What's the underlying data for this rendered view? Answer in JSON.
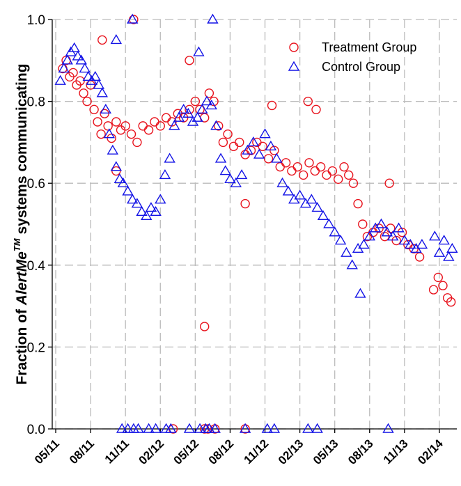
{
  "chart_data": {
    "type": "scatter",
    "ylabel_parts": [
      "Fraction of ",
      "AlertMe",
      "TM",
      " systems communicating"
    ],
    "xlim": [
      -0.3,
      34.5
    ],
    "ylim": [
      0,
      1.0
    ],
    "xticks": [
      {
        "value": 0,
        "label": "05/11"
      },
      {
        "value": 3,
        "label": "08/11"
      },
      {
        "value": 6,
        "label": "11/11"
      },
      {
        "value": 9,
        "label": "02/12"
      },
      {
        "value": 12,
        "label": "05/12"
      },
      {
        "value": 15,
        "label": "08/12"
      },
      {
        "value": 18,
        "label": "11/12"
      },
      {
        "value": 21,
        "label": "02/13"
      },
      {
        "value": 24,
        "label": "05/13"
      },
      {
        "value": 27,
        "label": "08/13"
      },
      {
        "value": 30,
        "label": "11/13"
      },
      {
        "value": 33,
        "label": "02/14"
      }
    ],
    "yticks": [
      {
        "value": 0,
        "label": "0.0"
      },
      0.2,
      0.4,
      0.6,
      0.8,
      {
        "value": 1,
        "label": "1.0"
      }
    ],
    "grid": true,
    "legend": "upper right",
    "series": [
      {
        "name": "Treatment Group",
        "color": "#e8141e",
        "marker": "circle",
        "x": [
          0.6,
          0.9,
          1.2,
          1.5,
          1.8,
          2.1,
          2.4,
          2.7,
          3.0,
          3.3,
          3.6,
          3.9,
          4.2,
          4.5,
          4.8,
          5.2,
          5.6,
          6.0,
          6.5,
          7.0,
          7.5,
          8.0,
          8.5,
          9.0,
          9.5,
          10.0,
          10.5,
          11.0,
          11.5,
          12.0,
          12.4,
          12.8,
          13.2,
          13.6,
          14.0,
          14.4,
          14.8,
          15.3,
          15.8,
          16.3,
          16.8,
          17.3,
          17.8,
          18.3,
          18.8,
          19.3,
          19.8,
          20.3,
          20.8,
          21.3,
          21.8,
          22.3,
          22.8,
          23.3,
          23.8,
          24.3,
          24.8,
          25.2,
          25.6,
          26.0,
          26.4,
          26.8,
          27.3,
          27.8,
          28.3,
          28.8,
          29.3,
          29.8,
          30.3,
          30.8,
          31.3,
          32.5,
          32.9,
          33.3,
          33.7,
          34.0,
          6.7,
          11.5,
          18.6,
          21.7,
          22.4,
          28.7,
          16.3,
          12.8,
          10.1,
          12.8,
          13.1,
          13.7,
          16.3,
          4.0,
          5.2
        ],
        "y": [
          0.88,
          0.9,
          0.86,
          0.87,
          0.84,
          0.85,
          0.82,
          0.8,
          0.84,
          0.78,
          0.75,
          0.72,
          0.77,
          0.74,
          0.71,
          0.75,
          0.73,
          0.74,
          0.72,
          0.7,
          0.74,
          0.73,
          0.75,
          0.74,
          0.76,
          0.75,
          0.77,
          0.76,
          0.78,
          0.8,
          0.78,
          0.76,
          0.82,
          0.8,
          0.74,
          0.7,
          0.72,
          0.69,
          0.7,
          0.67,
          0.68,
          0.7,
          0.69,
          0.66,
          0.68,
          0.64,
          0.65,
          0.63,
          0.64,
          0.62,
          0.65,
          0.63,
          0.64,
          0.62,
          0.63,
          0.61,
          0.64,
          0.62,
          0.6,
          0.55,
          0.5,
          0.47,
          0.48,
          0.49,
          0.47,
          0.49,
          0.46,
          0.48,
          0.45,
          0.44,
          0.42,
          0.34,
          0.37,
          0.35,
          0.32,
          0.31,
          1.0,
          0.9,
          0.79,
          0.8,
          0.78,
          0.6,
          0.55,
          0.25,
          0,
          0,
          0,
          0,
          0,
          0.95,
          0.63
        ]
      },
      {
        "name": "Control Group",
        "color": "#1414e6",
        "marker": "triangle",
        "x": [
          0.4,
          0.7,
          1.0,
          1.3,
          1.6,
          1.9,
          2.2,
          2.5,
          2.8,
          3.1,
          3.4,
          3.7,
          4.0,
          4.3,
          4.6,
          4.9,
          5.2,
          5.5,
          5.8,
          6.2,
          6.6,
          7.0,
          7.4,
          7.8,
          8.2,
          8.6,
          9.0,
          9.4,
          9.8,
          10.2,
          10.6,
          11.0,
          11.4,
          11.8,
          12.2,
          12.6,
          13.0,
          13.4,
          13.8,
          14.2,
          14.6,
          15.0,
          15.5,
          16.0,
          16.5,
          17.0,
          17.5,
          18.0,
          18.5,
          19.0,
          19.5,
          20.0,
          20.5,
          21.0,
          21.5,
          22.0,
          22.5,
          23.0,
          23.5,
          24.0,
          24.5,
          25.0,
          25.5,
          26.0,
          26.5,
          27.0,
          27.5,
          28.0,
          28.5,
          29.0,
          29.5,
          30.0,
          30.5,
          31.0,
          31.5,
          32.6,
          33.0,
          33.4,
          33.8,
          34.1,
          6.6,
          13.5,
          5.2,
          5.7,
          6.2,
          6.7,
          7.1,
          8.0,
          8.6,
          9.5,
          9.9,
          11.5,
          12.4,
          12.9,
          13.2,
          13.7,
          16.3,
          18.2,
          18.8,
          21.7,
          22.5,
          28.6,
          12.3,
          26.2
        ],
        "y": [
          0.85,
          0.88,
          0.9,
          0.92,
          0.93,
          0.91,
          0.9,
          0.88,
          0.86,
          0.85,
          0.86,
          0.84,
          0.82,
          0.78,
          0.72,
          0.68,
          0.64,
          0.61,
          0.6,
          0.58,
          0.56,
          0.55,
          0.53,
          0.52,
          0.54,
          0.53,
          0.56,
          0.62,
          0.66,
          0.74,
          0.76,
          0.78,
          0.77,
          0.75,
          0.76,
          0.78,
          0.8,
          0.79,
          0.74,
          0.66,
          0.63,
          0.61,
          0.6,
          0.62,
          0.68,
          0.7,
          0.67,
          0.72,
          0.69,
          0.66,
          0.6,
          0.58,
          0.56,
          0.57,
          0.55,
          0.56,
          0.54,
          0.52,
          0.5,
          0.48,
          0.46,
          0.43,
          0.4,
          0.44,
          0.45,
          0.47,
          0.49,
          0.5,
          0.48,
          0.47,
          0.49,
          0.46,
          0.45,
          0.44,
          0.45,
          0.47,
          0.43,
          0.46,
          0.42,
          0.44,
          1.0,
          1.0,
          0.95,
          0,
          0,
          0,
          0,
          0,
          0,
          0,
          0,
          0,
          0,
          0,
          0,
          0,
          0,
          0,
          0,
          0,
          0,
          0,
          0.92,
          0.33
        ]
      }
    ]
  }
}
